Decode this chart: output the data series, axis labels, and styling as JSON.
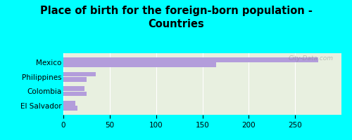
{
  "title": "Place of birth for the foreign-born population -\nCountries",
  "categories": [
    "El Salvador",
    "Colombia",
    "Philippines",
    "Mexico"
  ],
  "values1": [
    13,
    23,
    35,
    275
  ],
  "values2": [
    15,
    25,
    25,
    165
  ],
  "bar_color": "#b39ddb",
  "background_outer": "#00ffff",
  "background_inner": "#e8f0e0",
  "xlim": [
    0,
    300
  ],
  "xticks": [
    0,
    50,
    100,
    150,
    200,
    250
  ],
  "watermark": "City-Data.com",
  "title_fontsize": 10.5,
  "tick_fontsize": 7.5,
  "label_fontsize": 7.5
}
